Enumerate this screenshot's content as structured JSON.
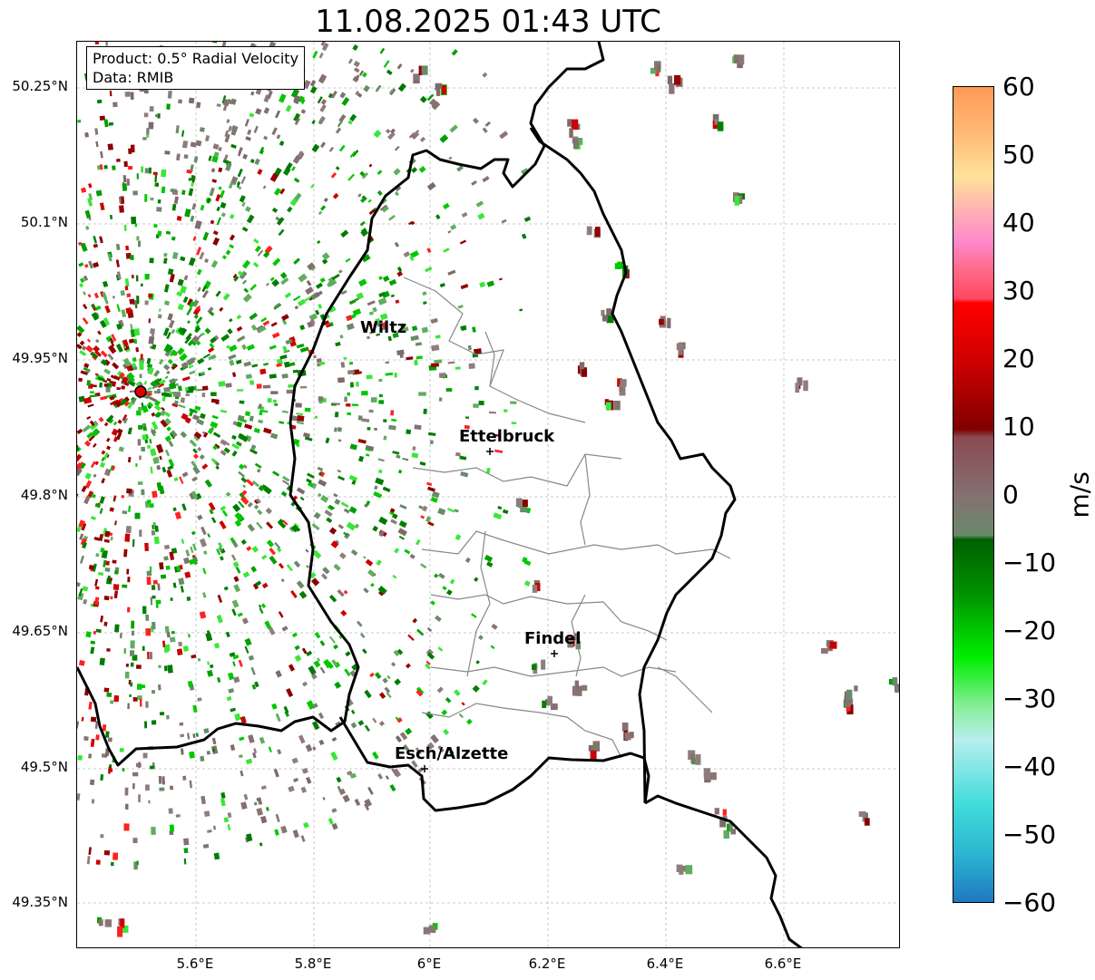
{
  "title": "11.08.2025 01:43 UTC",
  "info": {
    "product": "Product: 0.5° Radial Velocity",
    "data": "Data: RMIB"
  },
  "axes": {
    "lat_labels": [
      "50.25°N",
      "50.1°N",
      "49.95°N",
      "49.8°N",
      "49.65°N",
      "49.5°N",
      "49.35°N"
    ],
    "lon_labels": [
      "5.6°E",
      "5.8°E",
      "6°E",
      "6.2°E",
      "6.4°E",
      "6.6°E"
    ]
  },
  "cities": [
    {
      "name": "Wiltz"
    },
    {
      "name": "Ettelbruck"
    },
    {
      "name": "Findel"
    },
    {
      "name": "Esch/Alzette"
    }
  ],
  "colorbar": {
    "unit": "m/s",
    "ticks": [
      "60",
      "50",
      "40",
      "30",
      "20",
      "10",
      "0",
      "−10",
      "−20",
      "−30",
      "−40",
      "−50",
      "−60"
    ],
    "min": -60,
    "max": 60
  }
}
